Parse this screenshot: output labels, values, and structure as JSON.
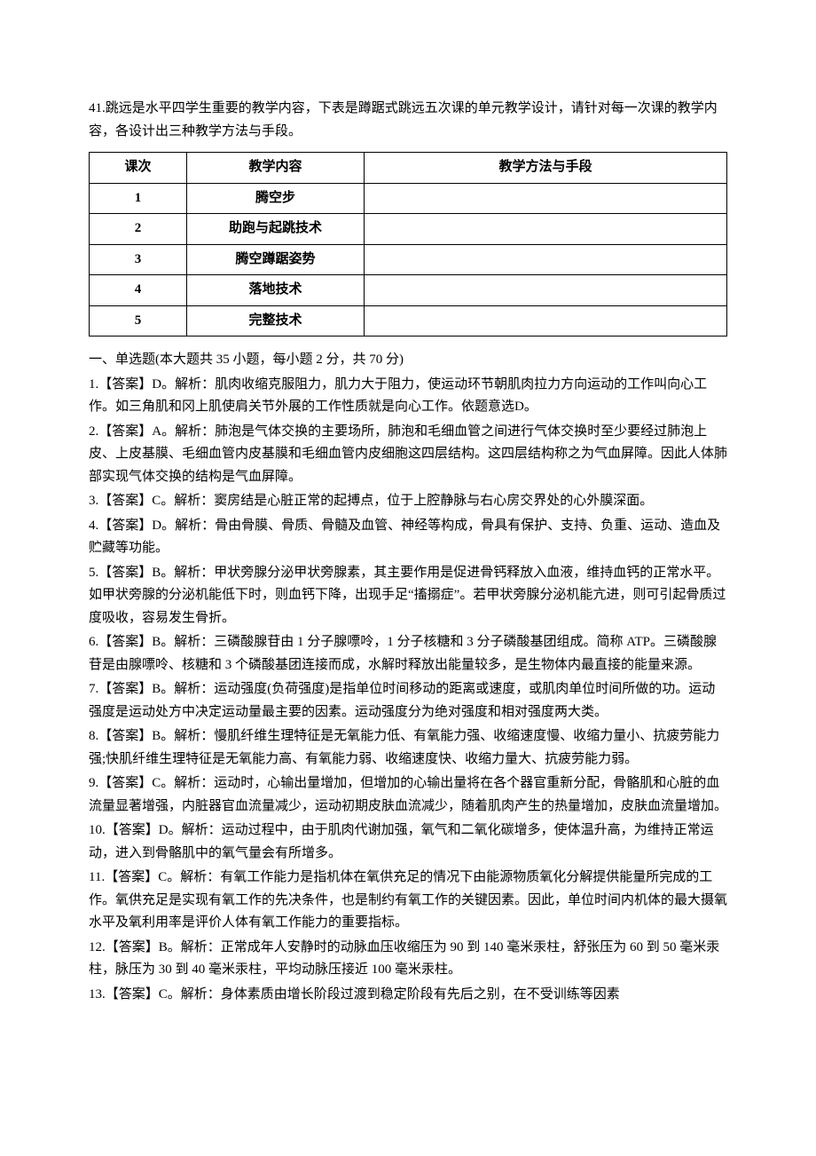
{
  "q41": {
    "intro": "41.跳远是水平四学生重要的教学内容，下表是蹲踞式跳远五次课的单元教学设计，请针对每一次课的教学内容，各设计出三种教学方法与手段。",
    "table": {
      "headers": [
        "课次",
        "教学内容",
        "教学方法与手段"
      ],
      "rows": [
        [
          "1",
          "腾空步",
          ""
        ],
        [
          "2",
          "助跑与起跳技术",
          ""
        ],
        [
          "3",
          "腾空蹲踞姿势",
          ""
        ],
        [
          "4",
          "落地技术",
          ""
        ],
        [
          "5",
          "完整技术",
          ""
        ]
      ]
    }
  },
  "sectionHeader": "一、单选题(本大题共 35 小题，每小题 2 分，共 70 分)",
  "answers": [
    {
      "num": "1.",
      "label": "【答案】D。",
      "text": "解析：肌肉收缩克服阻力，肌力大于阻力，使运动环节朝肌肉拉力方向运动的工作叫向心工作。如三角肌和冈上肌使肩关节外展的工作性质就是向心工作。依题意选D。"
    },
    {
      "num": "2.",
      "label": "【答案】A。",
      "text": "解析：肺泡是气体交换的主要场所，肺泡和毛细血管之间进行气体交换时至少要经过肺泡上皮、上皮基膜、毛细血管内皮基膜和毛细血管内皮细胞这四层结构。这四层结构称之为气血屏障。因此人体肺部实现气体交换的结构是气血屏障。"
    },
    {
      "num": "3.",
      "label": "【答案】C。",
      "text": "解析：窦房结是心脏正常的起搏点，位于上腔静脉与右心房交界处的心外膜深面。"
    },
    {
      "num": "4.",
      "label": "【答案】D。",
      "text": "解析：骨由骨膜、骨质、骨髓及血管、神经等构成，骨具有保护、支持、负重、运动、造血及贮藏等功能。"
    },
    {
      "num": "5.",
      "label": "【答案】B。",
      "text": "解析：甲状旁腺分泌甲状旁腺素，其主要作用是促进骨钙释放入血液，维持血钙的正常水平。如甲状旁腺的分泌机能低下时，则血钙下降，出现手足“搐搦症”。若甲状旁腺分泌机能亢进，则可引起骨质过度吸收，容易发生骨折。"
    },
    {
      "num": "6.",
      "label": "【答案】B。",
      "text": "解析：三磷酸腺苷由 1 分子腺嘌呤，1 分子核糖和 3 分子磷酸基团组成。简称 ATP。三磷酸腺苷是由腺嘌呤、核糖和 3 个磷酸基团连接而成，水解时释放出能量较多，是生物体内最直接的能量来源。"
    },
    {
      "num": "7.",
      "label": "【答案】B。",
      "text": "解析：运动强度(负荷强度)是指单位时间移动的距离或速度，或肌肉单位时间所做的功。运动强度是运动处方中决定运动量最主要的因素。运动强度分为绝对强度和相对强度两大类。"
    },
    {
      "num": "8.",
      "label": "【答案】B。",
      "text": "解析：慢肌纤维生理特征是无氧能力低、有氧能力强、收缩速度慢、收缩力量小、抗疲劳能力强;快肌纤维生理特征是无氧能力高、有氧能力弱、收缩速度快、收缩力量大、抗疲劳能力弱。"
    },
    {
      "num": "9.",
      "label": "【答案】C。",
      "text": "解析：运动时，心输出量增加，但增加的心输出量将在各个器官重新分配，骨骼肌和心脏的血流量显著增强，内脏器官血流量减少，运动初期皮肤血流减少，随着肌肉产生的热量增加，皮肤血流量增加。"
    },
    {
      "num": "10.",
      "label": "【答案】D。",
      "text": "解析：运动过程中，由于肌肉代谢加强，氧气和二氧化碳增多，使体温升高，为维持正常运动，进入到骨骼肌中的氧气量会有所增多。"
    },
    {
      "num": "11.",
      "label": "【答案】C。",
      "text": "解析：有氧工作能力是指机体在氧供充足的情况下由能源物质氧化分解提供能量所完成的工作。氧供充足是实现有氧工作的先决条件，也是制约有氧工作的关键因素。因此，单位时间内机体的最大摄氧水平及氧利用率是评价人体有氧工作能力的重要指标。"
    },
    {
      "num": "12.",
      "label": "【答案】B。",
      "text": "解析：正常成年人安静时的动脉血压收缩压为 90 到 140 毫米汞柱，舒张压为 60 到 50 毫米汞柱，脉压为 30 到 40 毫米汞柱，平均动脉压接近 100 毫米汞柱。"
    },
    {
      "num": "13.",
      "label": "【答案】C。",
      "text": "解析：身体素质由增长阶段过渡到稳定阶段有先后之别，在不受训练等因素"
    }
  ]
}
